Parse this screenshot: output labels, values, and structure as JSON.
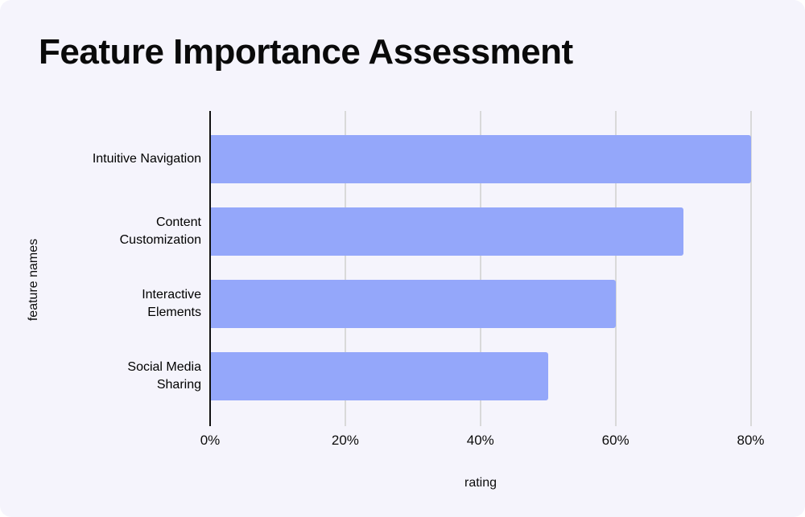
{
  "chart_data": {
    "type": "bar",
    "orientation": "horizontal",
    "title": "Feature Importance Assessment",
    "categories": [
      "Intuitive Navigation",
      "Content Customization",
      "Interactive Elements",
      "Social Media Sharing"
    ],
    "category_lines": [
      [
        "Intuitive Navigation"
      ],
      [
        "Content",
        "Customization"
      ],
      [
        "Interactive",
        "Elements"
      ],
      [
        "Social Media",
        "Sharing"
      ]
    ],
    "values": [
      80,
      70,
      60,
      50
    ],
    "unit": "%",
    "xlabel": "rating",
    "ylabel": "feature names",
    "x_ticks": [
      "0%",
      "20%",
      "40%",
      "60%",
      "80%"
    ],
    "x_tick_values": [
      0,
      20,
      40,
      60,
      80
    ],
    "xlim": [
      0,
      86
    ],
    "grid": true,
    "legend": false,
    "colors": {
      "bar": "#94a7fa",
      "background": "#f5f4fc",
      "gridline": "#d9d9d9",
      "axis_line": "#111111",
      "text": "#0a0a0a"
    }
  }
}
